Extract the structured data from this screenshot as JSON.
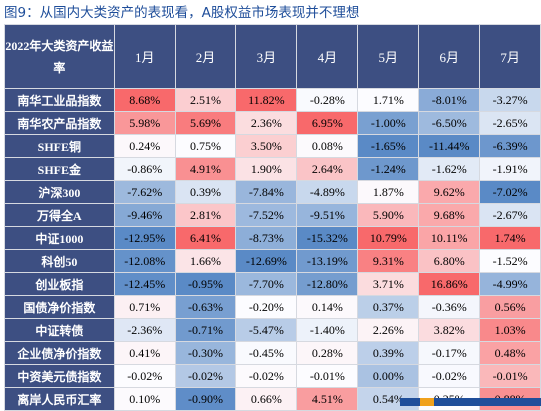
{
  "figure_title": "图9：从国内大类资产的表现看，A股权益市场表现并不理想",
  "table": {
    "corner_header": "2022年大类资产收益率",
    "columns": [
      "1月",
      "2月",
      "3月",
      "4月",
      "5月",
      "6月",
      "7月"
    ],
    "rows": [
      {
        "name": "南华工业品指数",
        "values": [
          "8.68%",
          "2.51%",
          "11.82%",
          "-0.28%",
          "1.71%",
          "-8.01%",
          "-3.27%"
        ]
      },
      {
        "name": "南华农产品指数",
        "values": [
          "5.98%",
          "5.69%",
          "2.36%",
          "6.95%",
          "-1.00%",
          "-6.50%",
          "-2.65%"
        ]
      },
      {
        "name": "SHFE铜",
        "values": [
          "0.24%",
          "0.75%",
          "3.50%",
          "0.08%",
          "-1.65%",
          "-11.44%",
          "-6.39%"
        ]
      },
      {
        "name": "SHFE金",
        "values": [
          "-0.86%",
          "4.91%",
          "1.90%",
          "2.64%",
          "-1.24%",
          "-1.62%",
          "-1.91%"
        ]
      },
      {
        "name": "沪深300",
        "values": [
          "-7.62%",
          "0.39%",
          "-7.84%",
          "-4.89%",
          "1.87%",
          "9.62%",
          "-7.02%"
        ]
      },
      {
        "name": "万得全A",
        "values": [
          "-9.46%",
          "2.81%",
          "-7.52%",
          "-9.51%",
          "5.90%",
          "9.68%",
          "-2.67%"
        ]
      },
      {
        "name": "中证1000",
        "values": [
          "-12.95%",
          "6.41%",
          "-8.73%",
          "-15.32%",
          "10.79%",
          "10.11%",
          "1.74%"
        ]
      },
      {
        "name": "科创50",
        "values": [
          "-12.08%",
          "1.66%",
          "-12.69%",
          "-13.19%",
          "9.31%",
          "6.80%",
          "-1.52%"
        ]
      },
      {
        "name": "创业板指",
        "values": [
          "-12.45%",
          "-0.95%",
          "-7.70%",
          "-12.80%",
          "3.71%",
          "16.86%",
          "-4.99%"
        ]
      },
      {
        "name": "国债净价指数",
        "values": [
          "0.71%",
          "-0.63%",
          "-0.20%",
          "0.14%",
          "0.37%",
          "-0.36%",
          "0.56%"
        ]
      },
      {
        "name": "中证转债",
        "values": [
          "-2.36%",
          "-0.71%",
          "-5.47%",
          "-1.40%",
          "2.26%",
          "3.82%",
          "1.03%"
        ]
      },
      {
        "name": "企业债净价指数",
        "values": [
          "0.41%",
          "-0.30%",
          "-0.45%",
          "0.28%",
          "0.39%",
          "-0.17%",
          "0.48%"
        ]
      },
      {
        "name": "中资美元债指数",
        "values": [
          "-0.02%",
          "-0.02%",
          "-0.02%",
          "-0.01%",
          "0.00%",
          "-0.02%",
          "-0.01%"
        ]
      },
      {
        "name": "离岸人民币汇率",
        "values": [
          "0.10%",
          "-0.90%",
          "0.66%",
          "4.51%",
          "0.54%",
          "0.25%",
          "0.88%"
        ]
      }
    ]
  },
  "colors": {
    "header_bg": "#3d4f82",
    "positive": "#f8696b",
    "negative": "#5a8ac6",
    "neutral": "#fcfcff",
    "title": "#1f4e9a"
  }
}
